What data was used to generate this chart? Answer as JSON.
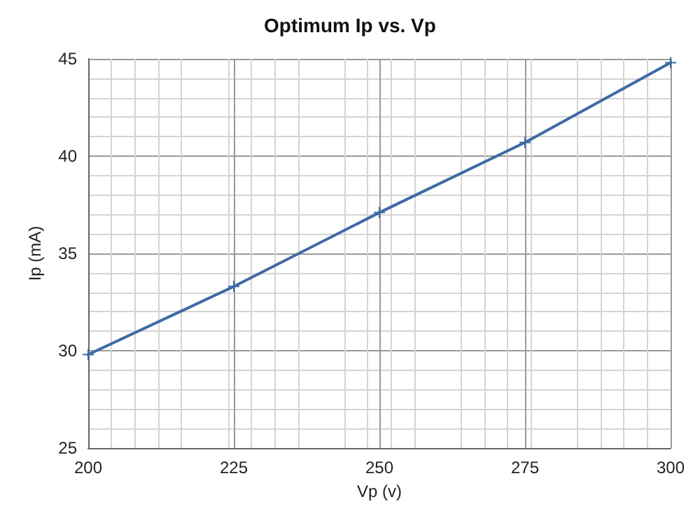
{
  "chart_data": {
    "type": "line",
    "title": "Optimum Ip vs. Vp",
    "xlabel": "Vp (v)",
    "ylabel": "Ip (mA)",
    "x": [
      200,
      225,
      250,
      275,
      300
    ],
    "series": [
      {
        "color": "#3d6aa3",
        "values": [
          29.8,
          33.3,
          37.1,
          40.7,
          44.8
        ]
      }
    ],
    "xlim": [
      200,
      300
    ],
    "xticks": [
      200,
      225,
      250,
      275,
      300
    ],
    "ylim": [
      25,
      45
    ],
    "yticks": [
      25,
      30,
      35,
      40,
      45
    ],
    "grid": true,
    "marker": "cross",
    "line_style": "solid"
  }
}
